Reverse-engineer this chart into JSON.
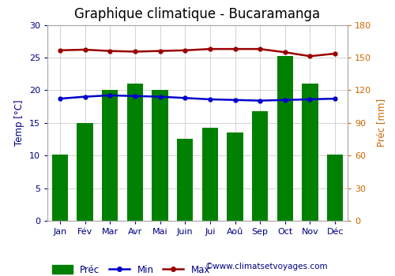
{
  "title": "Graphique climatique - Bucaramanga",
  "months": [
    "Jan",
    "Fév",
    "Mar",
    "Avr",
    "Mai",
    "Juin",
    "Jui",
    "Aoû",
    "Sep",
    "Oct",
    "Nov",
    "Déc"
  ],
  "prec_left": [
    10.2,
    15.0,
    20.0,
    21.0,
    20.0,
    12.5,
    14.3,
    13.5,
    16.8,
    25.2,
    21.0,
    10.1
  ],
  "temp_min": [
    18.7,
    19.0,
    19.2,
    19.1,
    19.0,
    18.8,
    18.6,
    18.5,
    18.4,
    18.5,
    18.6,
    18.7
  ],
  "temp_max": [
    26.1,
    26.2,
    26.0,
    25.9,
    26.0,
    26.1,
    26.3,
    26.3,
    26.3,
    25.8,
    25.2,
    25.6
  ],
  "bar_color": "#008000",
  "min_color": "#0000cc",
  "max_color": "#990000",
  "left_ylim": [
    0,
    30
  ],
  "right_ylim": [
    0,
    180
  ],
  "left_yticks": [
    0,
    5,
    10,
    15,
    20,
    25,
    30
  ],
  "right_yticks": [
    0,
    30,
    60,
    90,
    120,
    150,
    180
  ],
  "ylabel_left": "Temp [°C]",
  "ylabel_right": "Préc [mm]",
  "bg_color": "#ffffff",
  "grid_color": "#cccccc",
  "watermark": "©www.climatsetvoyages.com",
  "title_fontsize": 12,
  "label_fontsize": 8.5,
  "tick_fontsize": 8,
  "tick_color": "#000080",
  "label_color": "#000080",
  "right_tick_color": "#cc6600"
}
